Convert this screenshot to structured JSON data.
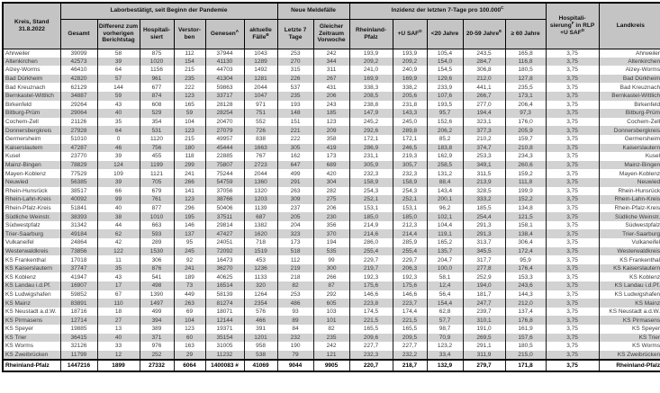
{
  "table": {
    "corner_header": "Kreis, Stand 31.8.2022",
    "group_headers": {
      "labor": "Laborbestätigt, seit Beginn der Pandemie",
      "meldefaelle": "Neue Meldefälle",
      "inzidenz": {
        "label": "Inzidenz der letzten 7-Tage pro 100.000",
        "sup": "C"
      },
      "hospitalisierung": {
        "label": "Hospitali-sierung",
        "sup": "F",
        "label2": " in RLP +U SAF",
        "sup2": "D"
      },
      "landkreis": "Landkreis"
    },
    "columns": [
      {
        "label": "Gesamt",
        "sup": ""
      },
      {
        "label": "Differenz zum vorherigen Berichtstag",
        "sup": ""
      },
      {
        "label": "Hospitali-siert",
        "sup": ""
      },
      {
        "label": "Verstor-ben",
        "sup": ""
      },
      {
        "label": "Genesen",
        "sup": "A"
      },
      {
        "label": "aktuelle Fälle",
        "sup": "B"
      },
      {
        "label": "Letzte 7 Tage",
        "sup": ""
      },
      {
        "label": "Gleicher Zeitraum Vorwoche",
        "sup": ""
      },
      {
        "label": "Rheinland-Pfalz",
        "sup": ""
      },
      {
        "label": "+U SAF",
        "sup": "D"
      },
      {
        "label": "<20 Jahre",
        "sup": ""
      },
      {
        "label": "20-59 Jahre",
        "sup": "E"
      },
      {
        "label": "≥ 60 Jahre",
        "sup": ""
      }
    ],
    "rows": [
      {
        "kreis": "Ahrweiler",
        "values": [
          "39099",
          "58",
          "875",
          "112",
          "37944",
          "1043",
          "253",
          "242",
          "193,9",
          "193,9",
          "105,4",
          "243,5",
          "165,8",
          "3,75"
        ],
        "landkreis": "Ahrweiler"
      },
      {
        "kreis": "Altenkirchen",
        "values": [
          "42573",
          "39",
          "1020",
          "154",
          "41130",
          "1289",
          "270",
          "344",
          "209,2",
          "209,2",
          "154,0",
          "284,7",
          "116,8",
          "3,75"
        ],
        "landkreis": "Altenkirchen"
      },
      {
        "kreis": "Alzey-Worms",
        "values": [
          "46410",
          "64",
          "1156",
          "215",
          "44703",
          "1492",
          "315",
          "311",
          "241,0",
          "240,9",
          "154,5",
          "306,8",
          "180,5",
          "3,75"
        ],
        "landkreis": "Alzey-Worms"
      },
      {
        "kreis": "Bad Dürkheim",
        "values": [
          "42820",
          "57",
          "961",
          "235",
          "41304",
          "1281",
          "226",
          "267",
          "169,9",
          "169,9",
          "129,6",
          "212,0",
          "127,8",
          "3,75"
        ],
        "landkreis": "Bad Dürkheim"
      },
      {
        "kreis": "Bad Kreuznach",
        "values": [
          "62129",
          "144",
          "677",
          "222",
          "59863",
          "2044",
          "537",
          "431",
          "338,3",
          "338,2",
          "233,9",
          "441,1",
          "235,5",
          "3,75"
        ],
        "landkreis": "Bad Kreuznach"
      },
      {
        "kreis": "Bernkastel-Wittlich",
        "values": [
          "34887",
          "59",
          "874",
          "123",
          "33717",
          "1047",
          "235",
          "206",
          "208,5",
          "205,6",
          "107,6",
          "266,7",
          "173,1",
          "3,75"
        ],
        "landkreis": "Bernkastel-Wittlich"
      },
      {
        "kreis": "Birkenfeld",
        "values": [
          "29264",
          "43",
          "608",
          "165",
          "28128",
          "971",
          "193",
          "243",
          "238,8",
          "231,8",
          "193,5",
          "277,0",
          "206,4",
          "3,75"
        ],
        "landkreis": "Birkenfeld"
      },
      {
        "kreis": "Bitburg-Prüm",
        "values": [
          "29064",
          "40",
          "529",
          "59",
          "28254",
          "751",
          "148",
          "185",
          "147,9",
          "143,3",
          "95,7",
          "194,4",
          "97,3",
          "3,75"
        ],
        "landkreis": "Bitburg-Prüm"
      },
      {
        "kreis": "Cochem-Zell",
        "values": [
          "21126",
          "35",
          "354",
          "104",
          "20470",
          "552",
          "151",
          "123",
          "245,2",
          "245,0",
          "152,6",
          "323,1",
          "176,0",
          "3,75"
        ],
        "landkreis": "Cochem-Zell"
      },
      {
        "kreis": "Donnersbergkreis",
        "values": [
          "27928",
          "64",
          "531",
          "123",
          "27079",
          "726",
          "221",
          "209",
          "292,6",
          "289,8",
          "206,2",
          "377,3",
          "205,9",
          "3,75"
        ],
        "landkreis": "Donnersbergkreis"
      },
      {
        "kreis": "Germersheim",
        "values": [
          "51010",
          "0",
          "1120",
          "215",
          "49957",
          "838",
          "222",
          "358",
          "172,1",
          "172,1",
          "85,2",
          "210,2",
          "159,7",
          "3,75"
        ],
        "landkreis": "Germersheim"
      },
      {
        "kreis": "Kaiserslautern",
        "values": [
          "47287",
          "46",
          "756",
          "180",
          "45444",
          "1663",
          "305",
          "419",
          "286,9",
          "246,5",
          "183,8",
          "374,7",
          "210,8",
          "3,75"
        ],
        "landkreis": "Kaiserslautern"
      },
      {
        "kreis": "Kusel",
        "values": [
          "23770",
          "39",
          "455",
          "118",
          "22885",
          "767",
          "162",
          "173",
          "231,1",
          "219,3",
          "162,9",
          "253,3",
          "234,3",
          "3,75"
        ],
        "landkreis": "Kusel"
      },
      {
        "kreis": "Mainz-Bingen",
        "values": [
          "78829",
          "124",
          "1199",
          "299",
          "75807",
          "2723",
          "647",
          "689",
          "305,9",
          "305,7",
          "258,5",
          "349,1",
          "260,6",
          "3,75"
        ],
        "landkreis": "Mainz-Bingen"
      },
      {
        "kreis": "Mayen-Koblenz",
        "values": [
          "77529",
          "109",
          "1121",
          "241",
          "75244",
          "2044",
          "499",
          "420",
          "232,3",
          "232,3",
          "131,2",
          "311,5",
          "159,2",
          "3,75"
        ],
        "landkreis": "Mayen-Koblenz"
      },
      {
        "kreis": "Neuwied",
        "values": [
          "56385",
          "39",
          "705",
          "266",
          "54759",
          "1360",
          "291",
          "304",
          "158,9",
          "158,9",
          "88,4",
          "213,9",
          "111,8",
          "3,75"
        ],
        "landkreis": "Neuwied"
      },
      {
        "kreis": "Rhein-Hunsrück",
        "values": [
          "38517",
          "66",
          "679",
          "141",
          "37056",
          "1320",
          "263",
          "282",
          "254,3",
          "254,3",
          "143,4",
          "328,5",
          "199,9",
          "3,75"
        ],
        "landkreis": "Rhein-Hunsrück"
      },
      {
        "kreis": "Rhein-Lahn-Kreis",
        "values": [
          "40092",
          "99",
          "761",
          "123",
          "38766",
          "1203",
          "309",
          "275",
          "252,1",
          "252,1",
          "200,1",
          "333,2",
          "152,2",
          "3,75"
        ],
        "landkreis": "Rhein-Lahn-Kreis"
      },
      {
        "kreis": "Rhein-Pfalz-Kreis",
        "values": [
          "51841",
          "40",
          "877",
          "296",
          "50406",
          "1139",
          "237",
          "206",
          "153,1",
          "153,1",
          "96,2",
          "185,5",
          "134,8",
          "3,75"
        ],
        "landkreis": "Rhein-Pfalz-Kreis"
      },
      {
        "kreis": "Südliche Weinstr.",
        "values": [
          "38393",
          "38",
          "1010",
          "195",
          "37511",
          "687",
          "205",
          "230",
          "185,0",
          "185,0",
          "102,1",
          "254,4",
          "121,5",
          "3,75"
        ],
        "landkreis": "Südliche Weinstr."
      },
      {
        "kreis": "Südwestpfalz",
        "values": [
          "31342",
          "44",
          "663",
          "146",
          "29814",
          "1382",
          "204",
          "356",
          "214,9",
          "212,3",
          "104,4",
          "291,3",
          "158,1",
          "3,75"
        ],
        "landkreis": "Südwestpfalz"
      },
      {
        "kreis": "Trier-Saarburg",
        "values": [
          "49184",
          "62",
          "593",
          "137",
          "47427",
          "1620",
          "323",
          "370",
          "214,6",
          "214,4",
          "119,1",
          "291,3",
          "138,4",
          "3,75"
        ],
        "landkreis": "Trier-Saarburg"
      },
      {
        "kreis": "Vulkaneifel",
        "values": [
          "24864",
          "42",
          "289",
          "95",
          "24051",
          "718",
          "173",
          "194",
          "286,0",
          "285,9",
          "165,2",
          "313,7",
          "306,4",
          "3,75"
        ],
        "landkreis": "Vulkaneifel"
      },
      {
        "kreis": "Westerwaldkreis",
        "values": [
          "73856",
          "122",
          "1530",
          "245",
          "72092",
          "1519",
          "518",
          "535",
          "255,4",
          "255,4",
          "135,7",
          "345,5",
          "172,4",
          "3,75"
        ],
        "landkreis": "Westerwaldkreis"
      },
      {
        "kreis": "KS Frankenthal",
        "values": [
          "17018",
          "11",
          "306",
          "92",
          "16473",
          "453",
          "112",
          "99",
          "229,7",
          "229,7",
          "204,7",
          "317,7",
          "95,9",
          "3,75"
        ],
        "landkreis": "KS Frankenthal"
      },
      {
        "kreis": "KS Kaiserslautern",
        "values": [
          "37747",
          "35",
          "876",
          "241",
          "36270",
          "1236",
          "219",
          "300",
          "219,7",
          "206,3",
          "100,0",
          "277,8",
          "176,4",
          "3,75"
        ],
        "landkreis": "KS Kaiserslautern"
      },
      {
        "kreis": "KS Koblenz",
        "values": [
          "41947",
          "43",
          "541",
          "189",
          "40625",
          "1133",
          "218",
          "266",
          "192,3",
          "192,3",
          "58,1",
          "252,9",
          "153,3",
          "3,75"
        ],
        "landkreis": "KS Koblenz"
      },
      {
        "kreis": "KS Landau i.d.Pf.",
        "values": [
          "16907",
          "17",
          "498",
          "73",
          "16514",
          "320",
          "82",
          "87",
          "175,6",
          "175,6",
          "12,4",
          "194,0",
          "243,6",
          "3,75"
        ],
        "landkreis": "KS Landau i.d.Pf."
      },
      {
        "kreis": "KS Ludwigshafen",
        "values": [
          "59852",
          "67",
          "1390",
          "449",
          "58139",
          "1264",
          "253",
          "292",
          "146,6",
          "146,6",
          "56,4",
          "181,7",
          "144,3",
          "3,75"
        ],
        "landkreis": "KS Ludwigshafen"
      },
      {
        "kreis": "KS Mainz",
        "values": [
          "83891",
          "110",
          "1497",
          "263",
          "81274",
          "2354",
          "486",
          "605",
          "223,8",
          "223,7",
          "154,4",
          "247,7",
          "212,0",
          "3,75"
        ],
        "landkreis": "KS Mainz"
      },
      {
        "kreis": "KS Neustadt a.d.W.",
        "values": [
          "18716",
          "18",
          "499",
          "69",
          "18071",
          "576",
          "93",
          "103",
          "174,5",
          "174,4",
          "62,8",
          "239,7",
          "137,4",
          "3,75"
        ],
        "landkreis": "KS Neustadt a.d.W."
      },
      {
        "kreis": "KS Pirmasens",
        "values": [
          "12714",
          "27",
          "394",
          "104",
          "12144",
          "466",
          "89",
          "101",
          "221,5",
          "221,5",
          "57,7",
          "310,1",
          "176,8",
          "3,75"
        ],
        "landkreis": "KS Pirmasens"
      },
      {
        "kreis": "KS Speyer",
        "values": [
          "19885",
          "13",
          "389",
          "123",
          "19371",
          "391",
          "84",
          "82",
          "165,5",
          "165,5",
          "98,7",
          "191,0",
          "161,9",
          "3,75"
        ],
        "landkreis": "KS Speyer"
      },
      {
        "kreis": "KS Trier",
        "values": [
          "36415",
          "40",
          "371",
          "60",
          "35154",
          "1201",
          "232",
          "235",
          "209,6",
          "209,5",
          "70,9",
          "269,5",
          "157,6",
          "3,75"
        ],
        "landkreis": "KS Trier"
      },
      {
        "kreis": "KS Worms",
        "values": [
          "32126",
          "33",
          "976",
          "163",
          "31005",
          "958",
          "190",
          "242",
          "227,7",
          "227,7",
          "123,2",
          "291,1",
          "180,5",
          "3,75"
        ],
        "landkreis": "KS Worms"
      },
      {
        "kreis": "KS Zweibrücken",
        "values": [
          "11799",
          "12",
          "252",
          "29",
          "11232",
          "538",
          "79",
          "121",
          "232,3",
          "232,2",
          "33,4",
          "311,9",
          "215,0",
          "3,75"
        ],
        "landkreis": "KS Zweibrücken"
      }
    ],
    "total_row": {
      "kreis": "Rheinland-Pfalz",
      "values": [
        "1447216",
        "1899",
        "27332",
        "6064",
        "1400083 #",
        "41069",
        "9044",
        "9905",
        "220,7",
        "218,7",
        "132,9",
        "279,7",
        "171,8",
        "3,75"
      ],
      "landkreis": "Rheinland-Pfalz"
    },
    "colors": {
      "header_bg": "#c4c4c4",
      "row_alt_bg": "#d2d2d2",
      "border": "#000000",
      "text": "#3a3a3a"
    }
  }
}
